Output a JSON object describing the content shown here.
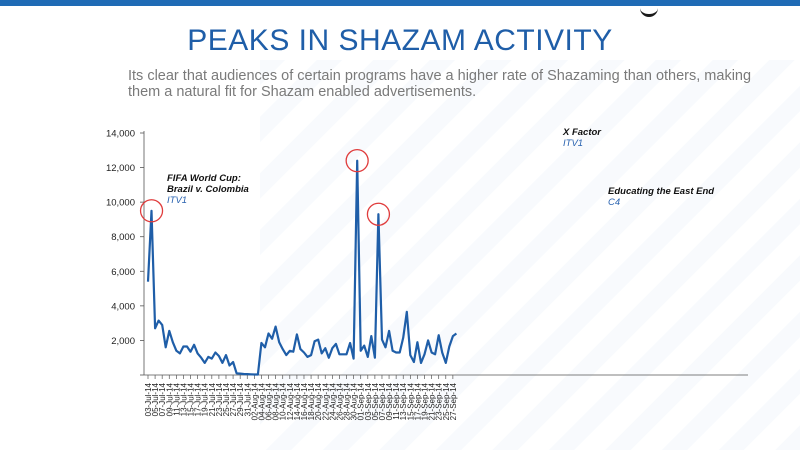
{
  "slide": {
    "title": "PEAKS IN SHAZAM ACTIVITY",
    "subtitle": "Its clear that audiences of certain programs have a higher rate of Shazaming than others, making them a natural fit for Shazam enabled advertisements."
  },
  "colors": {
    "accent": "#1f5ea8",
    "line": "#1f5ea8",
    "highlight": "#e03c3c",
    "network": "#2a63b0"
  },
  "chart_data": {
    "type": "line",
    "title": "",
    "xlabel": "",
    "ylabel": "",
    "ylim": [
      0,
      14000
    ],
    "yticks": [
      "14,000",
      "12,000",
      "10,000",
      "8,000",
      "6,000",
      "4,000",
      "2,000",
      ""
    ],
    "x_tick_labels": [
      "03-Jul-14",
      "05-Jul-14",
      "07-Jul-14",
      "09-Jul-14",
      "11-Jul-14",
      "13-Jul-14",
      "15-Jul-14",
      "17-Jul-14",
      "19-Jul-14",
      "21-Jul-14",
      "23-Jul-14",
      "25-Jul-14",
      "27-Jul-14",
      "29-Jul-14",
      "31-Jul-14",
      "02-Aug-14",
      "04-Aug-14",
      "06-Aug-14",
      "08-Aug-14",
      "10-Aug-14",
      "12-Aug-14",
      "14-Aug-14",
      "16-Aug-14",
      "18-Aug-14",
      "20-Aug-14",
      "22-Aug-14",
      "24-Aug-14",
      "26-Aug-14",
      "28-Aug-14",
      "30-Aug-14",
      "01-Sep-14",
      "03-Sep-14",
      "05-Sep-14",
      "07-Sep-14",
      "09-Sep-14",
      "11-Sep-14",
      "13-Sep-14",
      "15-Sep-14",
      "17-Sep-14",
      "19-Sep-14",
      "21-Sep-14",
      "23-Sep-14",
      "25-Sep-14",
      "27-Sep-14"
    ],
    "grid": false,
    "legend": "none",
    "series": [
      {
        "start_label": "03-Jul-14",
        "values": [
          5400,
          9500,
          2700,
          3150,
          2900,
          1600,
          2550,
          1900,
          1400,
          1250,
          1650,
          1650,
          1350,
          1750,
          1250,
          1000,
          700,
          1050,
          950,
          1300,
          1100,
          700,
          1150,
          550,
          750,
          100,
          80,
          60,
          50,
          40,
          30,
          30,
          1850,
          1600,
          2400,
          2100,
          2800,
          1900,
          1500,
          1150,
          1400,
          1350,
          2350,
          1500,
          1300,
          1050,
          1150,
          1950,
          2050,
          1250,
          1550,
          1000,
          1550,
          1800,
          1200,
          1200,
          1200,
          1850,
          950,
          12400,
          1400,
          1700,
          1050,
          2250,
          1000,
          9300,
          2050,
          1600,
          2550,
          1400,
          1300,
          1300,
          2150,
          3650,
          1150,
          750,
          1900,
          700,
          1200,
          2000,
          1300,
          1200,
          2300,
          1300,
          700,
          1650,
          2250,
          2400
        ]
      }
    ],
    "annotations": [
      {
        "title_lines": [
          "FIFA World Cup:",
          "Brazil v. Colombia"
        ],
        "network": "ITV1",
        "index": 1
      },
      {
        "title_lines": [
          "X Factor"
        ],
        "network": "ITV1",
        "index": 59
      },
      {
        "title_lines": [
          "Educating the East End"
        ],
        "network": "C4",
        "index": 65
      }
    ]
  }
}
